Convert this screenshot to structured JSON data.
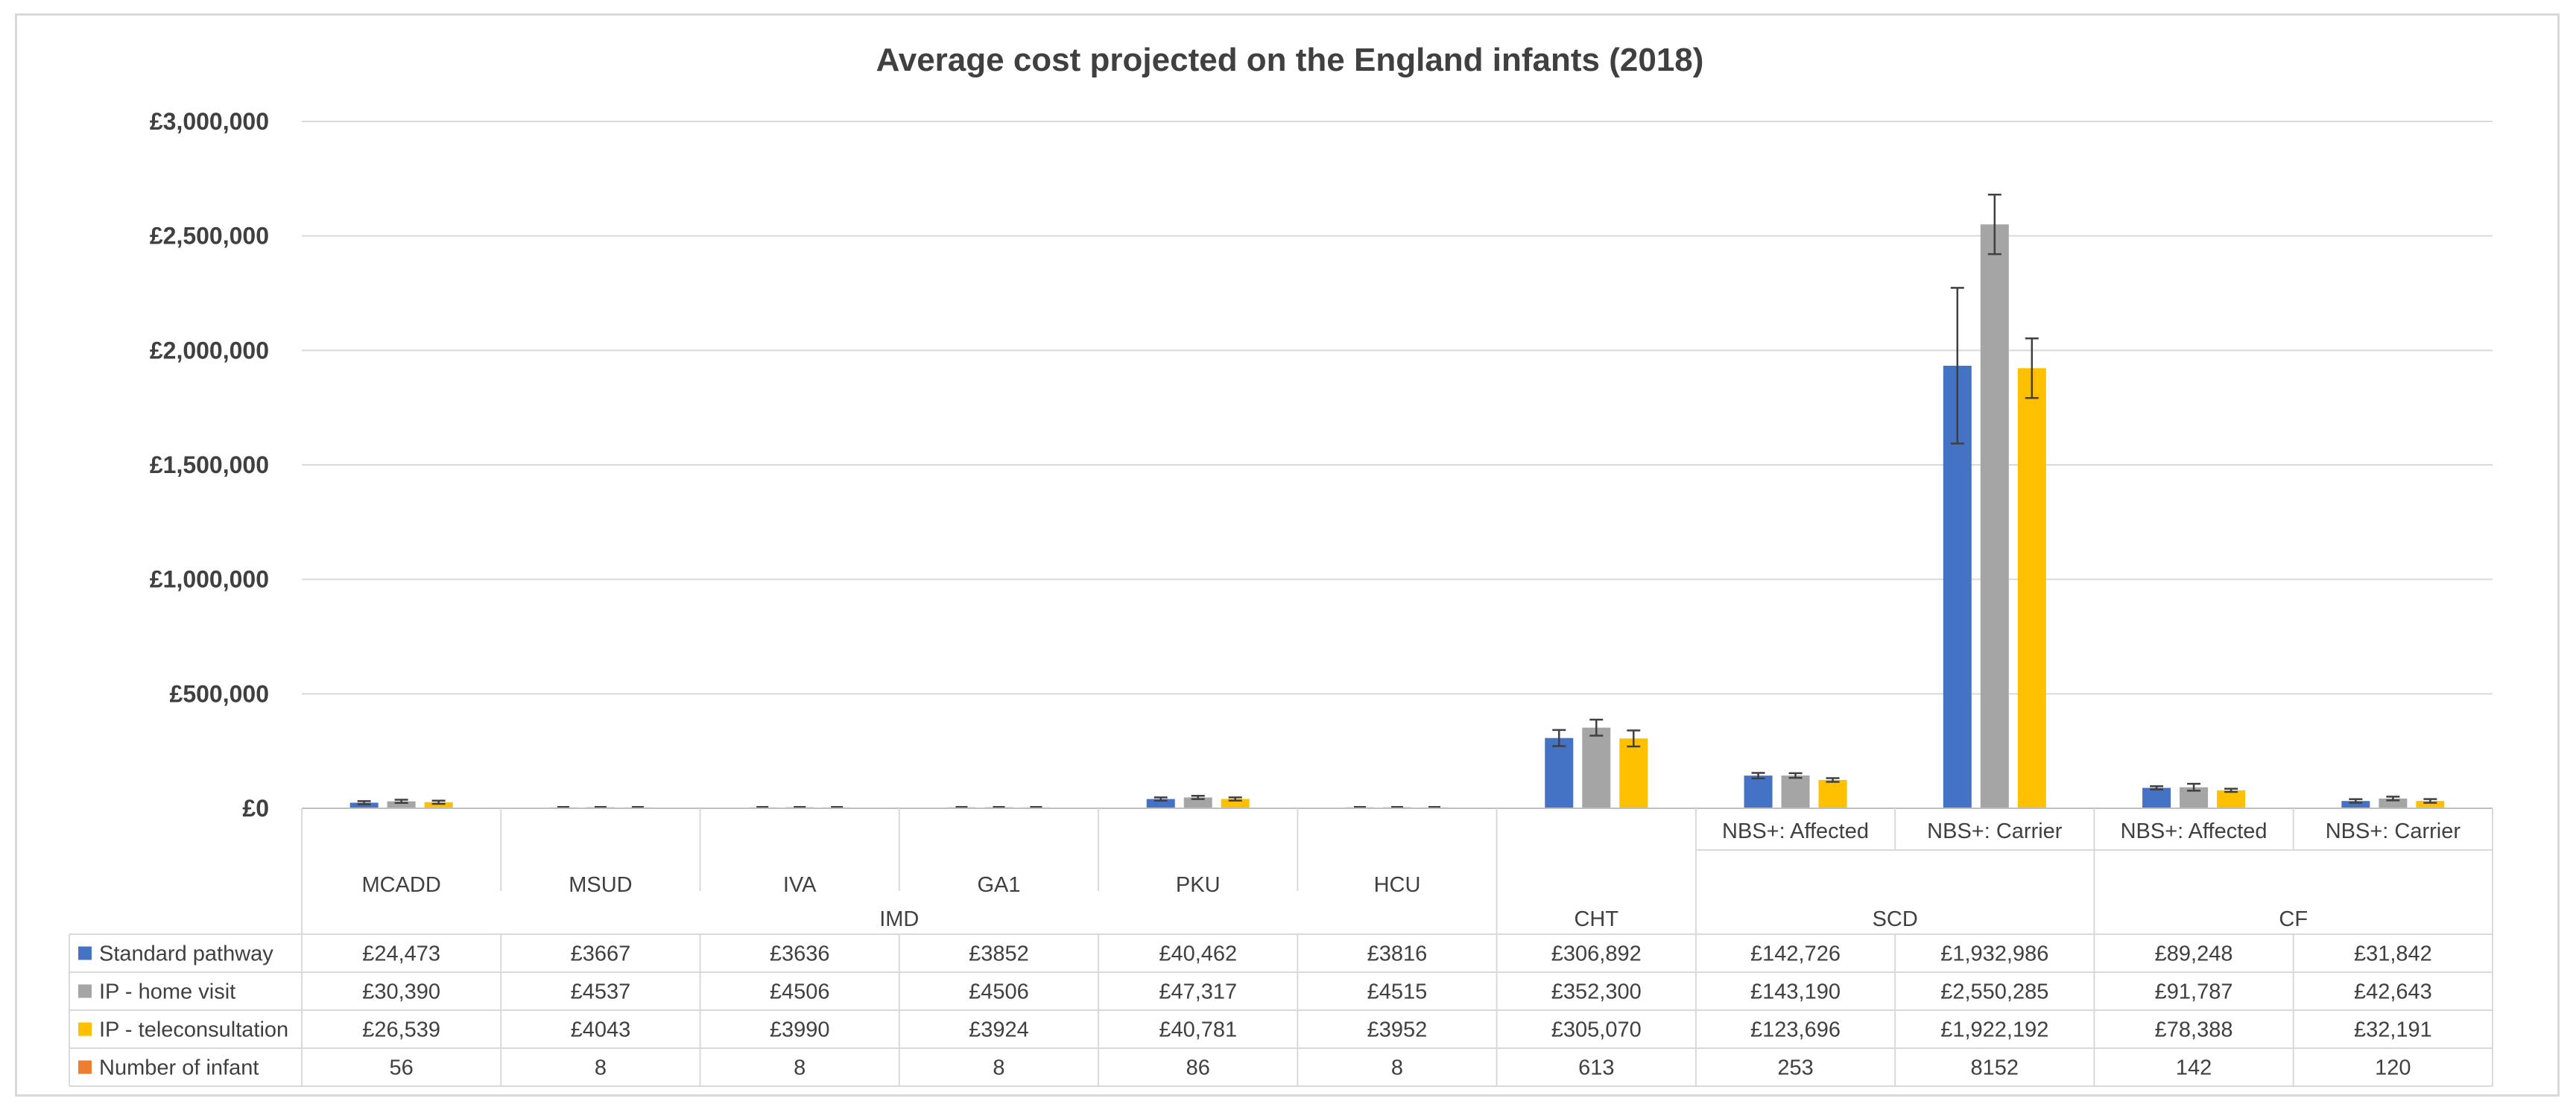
{
  "chart_data": {
    "type": "bar",
    "title": "Average cost projected on the England infants (2018)",
    "xlabel": "",
    "ylabel": "",
    "ylim": [
      0,
      3000000
    ],
    "y_ticks": [
      0,
      500000,
      1000000,
      1500000,
      2000000,
      2500000,
      3000000
    ],
    "y_tick_labels": [
      "£0",
      "£500,000",
      "£1,000,000",
      "£1,500,000",
      "£2,000,000",
      "£2,500,000",
      "£3,000,000"
    ],
    "grid": true,
    "legend": "data-table",
    "categories": [
      "MCADD",
      "MSUD",
      "IVA",
      "GA1",
      "PKU",
      "HCU",
      "",
      "NBS+: Affected",
      "NBS+: Carrier",
      "NBS+: Affected",
      "NBS+: Carrier"
    ],
    "groups": [
      {
        "label": "IMD",
        "count": 6
      },
      {
        "label": "CHT",
        "count": 1
      },
      {
        "label": "SCD",
        "count": 2
      },
      {
        "label": "CF",
        "count": 2
      }
    ],
    "series": [
      {
        "name": "Standard pathway",
        "color": "#4472c4",
        "values": [
          24473,
          3667,
          3636,
          3852,
          40462,
          3816,
          306892,
          142726,
          1932986,
          89248,
          31842
        ],
        "labels": [
          "£24,473",
          "£3667",
          "£3636",
          "£3852",
          "£40,462",
          "£3816",
          "£306,892",
          "£142,726",
          "£1,932,986",
          "£89,248",
          "£31,842"
        ],
        "error": [
          7000,
          0,
          0,
          0,
          7000,
          0,
          35000,
          12000,
          340000,
          7000,
          8000
        ]
      },
      {
        "name": "IP - home visit",
        "color": "#a5a5a5",
        "values": [
          30390,
          4537,
          4506,
          4506,
          47317,
          4515,
          352300,
          143190,
          2550285,
          91787,
          42643
        ],
        "labels": [
          "£30,390",
          "£4537",
          "£4506",
          "£4506",
          "£47,317",
          "£4515",
          "£352,300",
          "£143,190",
          "£2,550,285",
          "£91,787",
          "£42,643"
        ],
        "error": [
          7000,
          0,
          0,
          0,
          7000,
          0,
          35000,
          10000,
          130000,
          15000,
          8000
        ]
      },
      {
        "name": "IP - teleconsultation",
        "color": "#ffc000",
        "values": [
          26539,
          4043,
          3990,
          3924,
          40781,
          3952,
          305070,
          123696,
          1922192,
          78388,
          32191
        ],
        "labels": [
          "£26,539",
          "£4043",
          "£3990",
          "£3924",
          "£40,781",
          "£3952",
          "£305,070",
          "£123,696",
          "£1,922,192",
          "£78,388",
          "£32,191"
        ],
        "error": [
          7000,
          0,
          0,
          0,
          7000,
          0,
          35000,
          8000,
          130000,
          7000,
          8000
        ]
      },
      {
        "name": "Number of infant",
        "color": "#ed7d31",
        "values": [
          56,
          8,
          8,
          8,
          86,
          8,
          613,
          253,
          8152,
          142,
          120
        ],
        "labels": [
          "56",
          "8",
          "8",
          "8",
          "86",
          "8",
          "613",
          "253",
          "8152",
          "142",
          "120"
        ]
      }
    ]
  }
}
